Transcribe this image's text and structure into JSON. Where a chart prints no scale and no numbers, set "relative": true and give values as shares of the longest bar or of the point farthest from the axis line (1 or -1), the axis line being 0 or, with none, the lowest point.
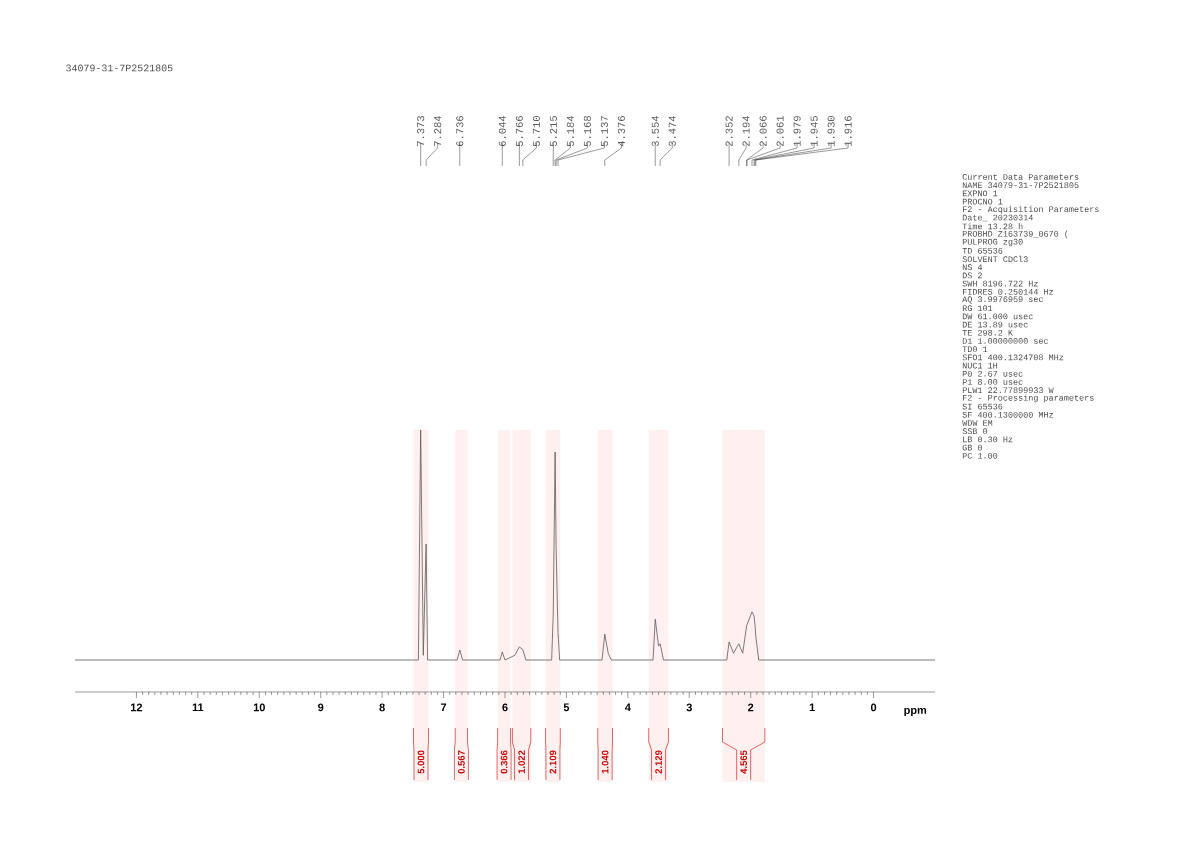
{
  "chart_data": {
    "type": "line",
    "title": "34079-31-7P2521805",
    "xlabel": "ppm",
    "relative": true,
    "color": "#5a5a5a",
    "xlim": [
      13,
      -1
    ],
    "xticks": [
      12,
      11,
      10,
      9,
      8,
      7,
      6,
      5,
      4,
      3,
      2,
      1,
      0
    ],
    "x": [
      13.0,
      7.41,
      7.373,
      7.33,
      7.284,
      7.26,
      6.78,
      6.736,
      6.69,
      6.08,
      6.044,
      6.0,
      5.84,
      5.766,
      5.71,
      5.66,
      5.24,
      5.215,
      5.184,
      5.168,
      5.137,
      5.11,
      4.42,
      4.376,
      4.32,
      4.27,
      3.59,
      3.554,
      3.5,
      3.474,
      3.42,
      2.39,
      2.352,
      2.28,
      2.194,
      2.13,
      2.066,
      2.061,
      1.979,
      1.945,
      1.93,
      1.916,
      1.87,
      -1.0
    ],
    "values": [
      0.122,
      0.122,
      1.0,
      0.14,
      0.565,
      0.122,
      0.122,
      0.16,
      0.122,
      0.122,
      0.153,
      0.122,
      0.14,
      0.172,
      0.162,
      0.122,
      0.122,
      0.298,
      0.916,
      0.552,
      0.227,
      0.122,
      0.122,
      0.221,
      0.148,
      0.122,
      0.122,
      0.278,
      0.175,
      0.184,
      0.122,
      0.122,
      0.191,
      0.148,
      0.184,
      0.148,
      0.254,
      0.256,
      0.306,
      0.289,
      0.254,
      0.21,
      0.122,
      0.122
    ],
    "bands": [
      {
        "axis": "x",
        "from": 7.49,
        "to": 7.245,
        "label": "5.000"
      },
      {
        "axis": "x",
        "from": 6.81,
        "to": 6.61,
        "label": "0.567"
      },
      {
        "axis": "x",
        "from": 6.12,
        "to": 5.91,
        "label": "0.366"
      },
      {
        "axis": "x",
        "from": 5.88,
        "to": 5.58,
        "label": "1.022"
      },
      {
        "axis": "x",
        "from": 5.34,
        "to": 5.1,
        "label": "2.109"
      },
      {
        "axis": "x",
        "from": 4.49,
        "to": 4.25,
        "label": "1.040"
      },
      {
        "axis": "x",
        "from": 3.66,
        "to": 3.34,
        "label": "2.129"
      },
      {
        "axis": "x",
        "from": 2.46,
        "to": 1.77,
        "label": "4.565"
      }
    ],
    "annotations": [
      {
        "text": "7.373",
        "x": 7.373
      },
      {
        "text": "7.284",
        "x": 7.284
      },
      {
        "text": "6.736",
        "x": 6.736
      },
      {
        "text": "6.044",
        "x": 6.044
      },
      {
        "text": "5.766",
        "x": 5.766
      },
      {
        "text": "5.710",
        "x": 5.71
      },
      {
        "text": "5.215",
        "x": 5.215
      },
      {
        "text": "5.184",
        "x": 5.184
      },
      {
        "text": "5.168",
        "x": 5.168
      },
      {
        "text": "5.137",
        "x": 5.137
      },
      {
        "text": "4.376",
        "x": 4.376
      },
      {
        "text": "3.554",
        "x": 3.554
      },
      {
        "text": "3.474",
        "x": 3.474
      },
      {
        "text": "2.352",
        "x": 2.352
      },
      {
        "text": "2.194",
        "x": 2.194
      },
      {
        "text": "2.066",
        "x": 2.066
      },
      {
        "text": "2.061",
        "x": 2.061
      },
      {
        "text": "1.979",
        "x": 1.979
      },
      {
        "text": "1.945",
        "x": 1.945
      },
      {
        "text": "1.930",
        "x": 1.93
      },
      {
        "text": "1.916",
        "x": 1.916
      },
      "Current Data Parameters",
      "NAME 34079-31-7P2521805",
      "EXPNO 1",
      "PROCNO 1",
      "F2 - Acquisition Parameters",
      "Date_ 20230314",
      "Time 13.28 h",
      "PROBHD Z163739_0670 (",
      "PULPROG zg30",
      "TD 65536",
      "SOLVENT CDCl3",
      "NS 4",
      "DS 2",
      "SWH 8196.722 Hz",
      "FIDRES 0.250144 Hz",
      "AQ 3.9976959 sec",
      "RG 101",
      "DW 61.000 usec",
      "DE 13.89 usec",
      "TE 298.2 K",
      "D1 1.00000000 sec",
      "TD0 1",
      "SFO1 400.1324708 MHz",
      "NUC1 1H",
      "P0 2.67 usec",
      "P1 8.00 usec",
      "PLW1 22.77899933 W",
      "F2 - Processing parameters",
      "SI 65536",
      "SF 400.1300000 MHz",
      "WDW EM",
      "SSB 0",
      "LB 0.30 Hz",
      "GB 0",
      "PC 1.00"
    ]
  }
}
